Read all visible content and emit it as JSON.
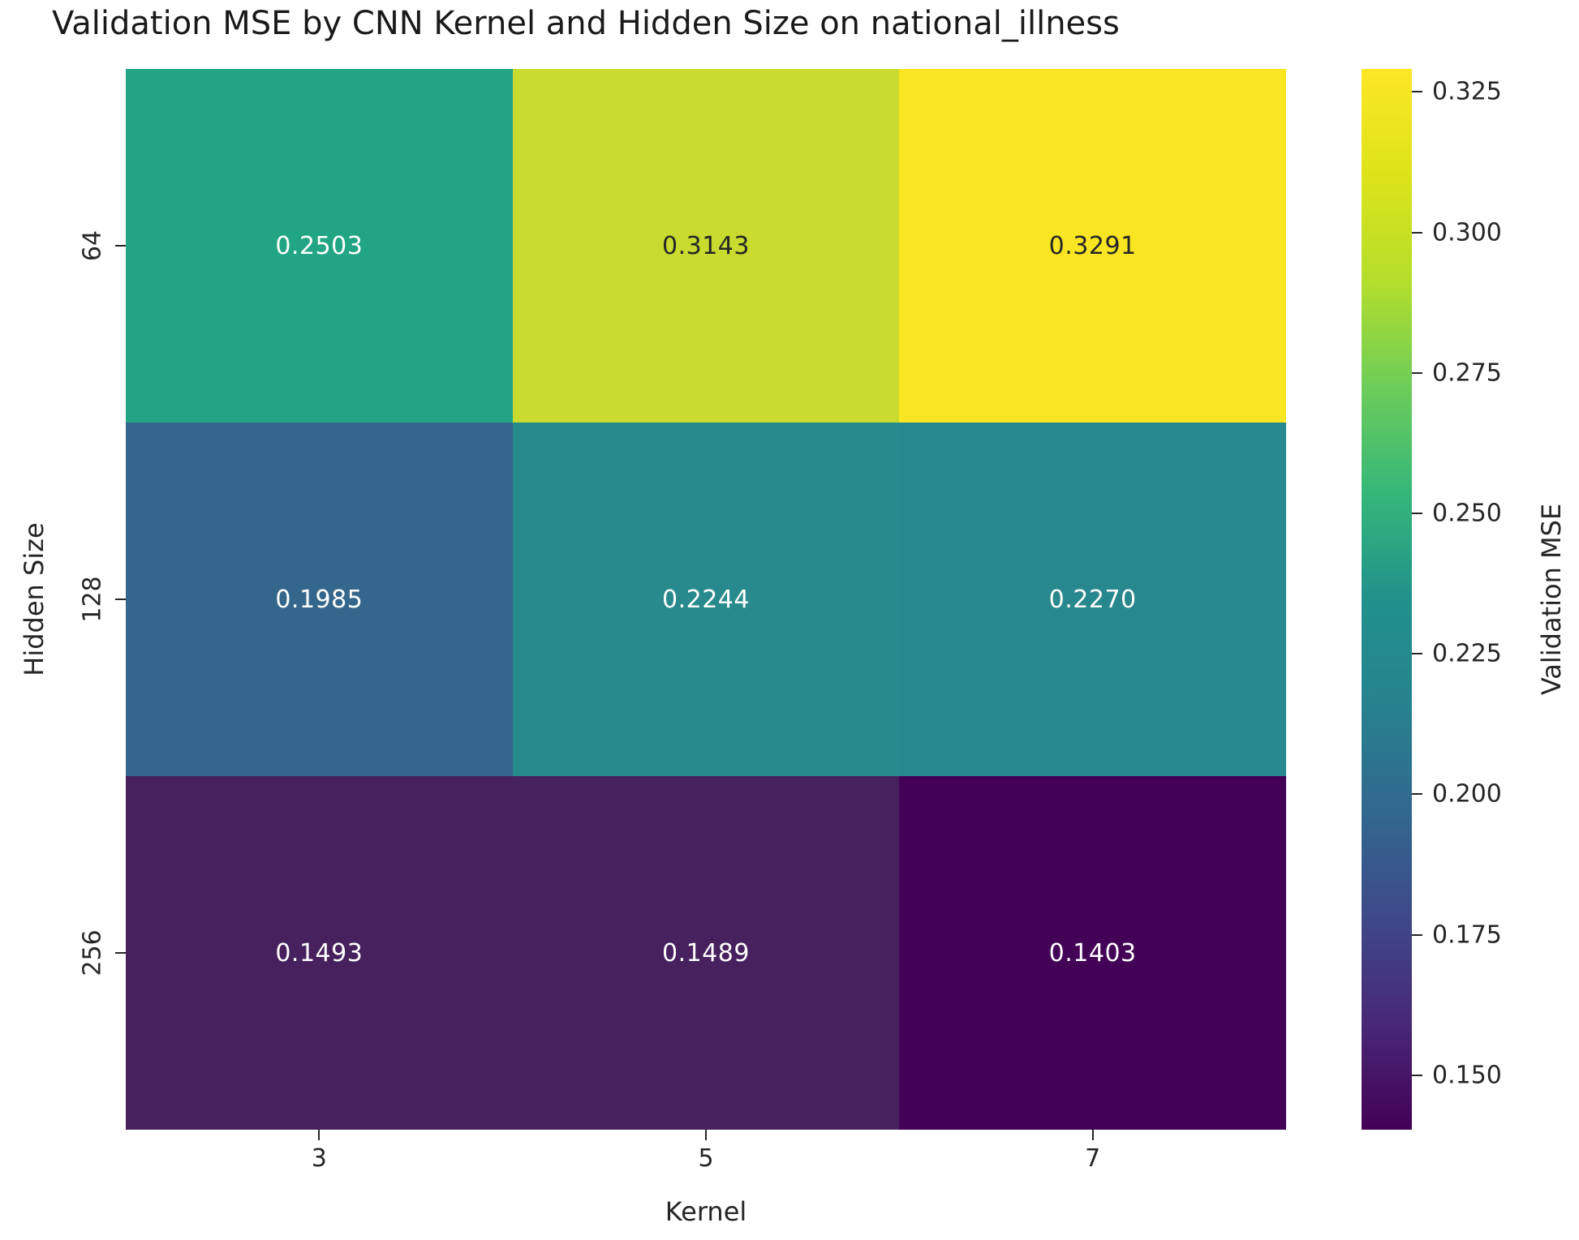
{
  "title": "Validation MSE by CNN Kernel and Hidden Size on national_illness",
  "chart_data": {
    "type": "heatmap",
    "title": "Validation MSE by CNN Kernel and Hidden Size on national_illness",
    "xlabel": "Kernel",
    "ylabel": "Hidden Size",
    "colormap": "viridis",
    "x_categories": [
      "3",
      "5",
      "7"
    ],
    "y_categories": [
      "64",
      "128",
      "256"
    ],
    "values": [
      [
        0.2503,
        0.3143,
        0.3291
      ],
      [
        0.1985,
        0.2244,
        0.227
      ],
      [
        0.1493,
        0.1489,
        0.1403
      ]
    ],
    "cell_labels": [
      [
        "0.2503",
        "0.3143",
        "0.3291"
      ],
      [
        "0.1985",
        "0.2244",
        "0.2270"
      ],
      [
        "0.1493",
        "0.1489",
        "0.1403"
      ]
    ],
    "cell_colors": [
      [
        "#21a585",
        "#c8db2e",
        "#f9e522"
      ],
      [
        "#35678d",
        "#298a8d",
        "#27898d"
      ],
      [
        "#46215e",
        "#46215e",
        "#440256"
      ]
    ],
    "cell_text_colors": [
      [
        "#ffffff",
        "#262626",
        "#262626"
      ],
      [
        "#ffffff",
        "#ffffff",
        "#ffffff"
      ],
      [
        "#ffffff",
        "#ffffff",
        "#ffffff"
      ]
    ],
    "vmin": 0.1403,
    "vmax": 0.3291,
    "colorbar": {
      "label": "Validation MSE",
      "tick_labels": [
        "0.325",
        "0.300",
        "0.275",
        "0.250",
        "0.225",
        "0.200",
        "0.175",
        "0.150"
      ],
      "tick_values": [
        0.325,
        0.3,
        0.275,
        0.25,
        0.225,
        0.2,
        0.175,
        0.15
      ],
      "gradient_stops_bottom_to_top": [
        "#440154",
        "#482878",
        "#3e4989",
        "#31688e",
        "#26828e",
        "#21918c",
        "#35b779",
        "#6dcd59",
        "#b4de2c",
        "#dde319",
        "#fde725"
      ]
    },
    "tick_color": "#262626"
  }
}
